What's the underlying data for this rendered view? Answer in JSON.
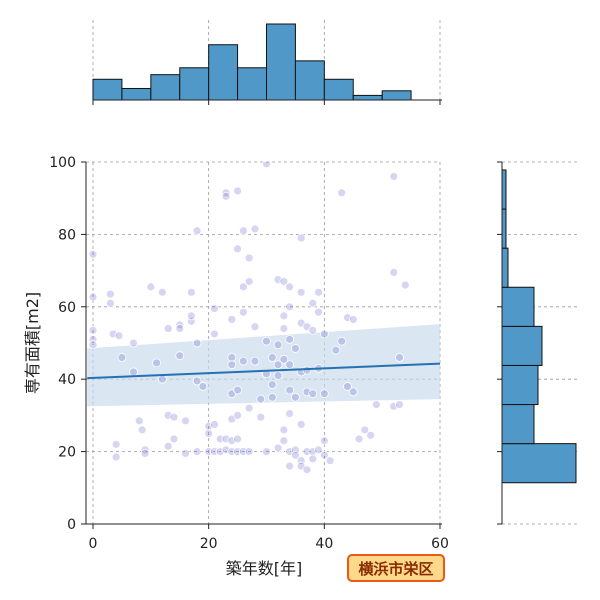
{
  "chart_data": {
    "type": "scatter",
    "subtype": "jointplot-with-regression",
    "xlabel": "築年数[年]",
    "ylabel": "専有面積[m2]",
    "xlim": [
      -1,
      60
    ],
    "ylim": [
      0,
      100
    ],
    "xticks": [
      0,
      20,
      40,
      60
    ],
    "yticks": [
      0,
      20,
      40,
      60,
      80,
      100
    ],
    "grid": true,
    "badge": "横浜市栄区",
    "colors": {
      "points": "#6a6ad0",
      "regression_line": "#2471b3",
      "confidence_band": "#c6d9ea",
      "histogram": "#4f98c7",
      "grid": "#9a9a9a",
      "badge_fill": "#ffd98a",
      "badge_border": "#e8591a",
      "badge_text": "#8a2a00"
    },
    "regression": {
      "x": [
        -1,
        60
      ],
      "y": [
        40.3,
        44.3
      ],
      "ci_lower": [
        32.5,
        34.5
      ],
      "ci_upper": [
        48.5,
        55.2
      ]
    },
    "x_histogram": {
      "bin_edges": [
        0,
        5,
        10,
        15,
        20,
        25,
        30,
        35,
        40,
        45,
        50,
        55
      ],
      "counts": [
        9,
        5,
        11,
        14,
        24,
        14,
        33,
        17,
        9,
        2,
        4
      ]
    },
    "y_histogram": {
      "bin_edges": [
        11.4,
        22.2,
        33.0,
        43.8,
        54.6,
        65.4,
        76.2,
        87.0,
        97.8
      ],
      "counts": [
        37,
        16,
        18,
        20,
        16,
        3,
        2,
        2
      ]
    },
    "points": [
      {
        "x": 0,
        "y": 74.5
      },
      {
        "x": 0,
        "y": 62.7
      },
      {
        "x": 0,
        "y": 53.5
      },
      {
        "x": 0,
        "y": 51.0
      },
      {
        "x": 0,
        "y": 49.5
      },
      {
        "x": 3,
        "y": 61.0
      },
      {
        "x": 3,
        "y": 63.5
      },
      {
        "x": 3.5,
        "y": 52.5
      },
      {
        "x": 4,
        "y": 22.0
      },
      {
        "x": 4,
        "y": 18.5
      },
      {
        "x": 4.5,
        "y": 52.0
      },
      {
        "x": 5,
        "y": 46.0
      },
      {
        "x": 7,
        "y": 50.0
      },
      {
        "x": 7,
        "y": 42.0
      },
      {
        "x": 8,
        "y": 28.5
      },
      {
        "x": 8.5,
        "y": 26.0
      },
      {
        "x": 9,
        "y": 20.5
      },
      {
        "x": 9,
        "y": 19.5
      },
      {
        "x": 10,
        "y": 65.5
      },
      {
        "x": 11,
        "y": 44.5
      },
      {
        "x": 12,
        "y": 40.0
      },
      {
        "x": 12,
        "y": 64.0
      },
      {
        "x": 13,
        "y": 54.0
      },
      {
        "x": 13,
        "y": 30.0
      },
      {
        "x": 13,
        "y": 21.5
      },
      {
        "x": 14,
        "y": 23.5
      },
      {
        "x": 14,
        "y": 29.5
      },
      {
        "x": 15,
        "y": 55.0
      },
      {
        "x": 15,
        "y": 54.0
      },
      {
        "x": 15,
        "y": 46.5
      },
      {
        "x": 16,
        "y": 28.5
      },
      {
        "x": 16,
        "y": 19.5
      },
      {
        "x": 17,
        "y": 56.0
      },
      {
        "x": 17,
        "y": 57.5
      },
      {
        "x": 17,
        "y": 64.0
      },
      {
        "x": 18,
        "y": 81.0
      },
      {
        "x": 18,
        "y": 50.0
      },
      {
        "x": 18,
        "y": 39.5
      },
      {
        "x": 18,
        "y": 20.0
      },
      {
        "x": 19,
        "y": 38.0
      },
      {
        "x": 20,
        "y": 27.0
      },
      {
        "x": 20,
        "y": 25.0
      },
      {
        "x": 20,
        "y": 20.0
      },
      {
        "x": 21,
        "y": 59.5
      },
      {
        "x": 21,
        "y": 52.5
      },
      {
        "x": 21,
        "y": 27.5
      },
      {
        "x": 21,
        "y": 20.0
      },
      {
        "x": 22,
        "y": 23.5
      },
      {
        "x": 22,
        "y": 20.0
      },
      {
        "x": 23,
        "y": 91.5
      },
      {
        "x": 23,
        "y": 90.5
      },
      {
        "x": 23,
        "y": 23.5
      },
      {
        "x": 23,
        "y": 20.5
      },
      {
        "x": 24,
        "y": 56.5
      },
      {
        "x": 24,
        "y": 46.0
      },
      {
        "x": 24,
        "y": 44.0
      },
      {
        "x": 24,
        "y": 36.0
      },
      {
        "x": 24,
        "y": 29.0
      },
      {
        "x": 24,
        "y": 23.0
      },
      {
        "x": 24,
        "y": 20.0
      },
      {
        "x": 25,
        "y": 92.0
      },
      {
        "x": 25,
        "y": 76.0
      },
      {
        "x": 25,
        "y": 37.0
      },
      {
        "x": 25,
        "y": 30.0
      },
      {
        "x": 25,
        "y": 23.5
      },
      {
        "x": 25,
        "y": 20.0
      },
      {
        "x": 26,
        "y": 81.0
      },
      {
        "x": 26,
        "y": 65.5
      },
      {
        "x": 26,
        "y": 58.5
      },
      {
        "x": 26,
        "y": 45.0
      },
      {
        "x": 26,
        "y": 20.0
      },
      {
        "x": 27,
        "y": 73.5
      },
      {
        "x": 27,
        "y": 67.0
      },
      {
        "x": 27,
        "y": 32.0
      },
      {
        "x": 27,
        "y": 20.0
      },
      {
        "x": 28,
        "y": 81.5
      },
      {
        "x": 28,
        "y": 54.5
      },
      {
        "x": 28,
        "y": 45.0
      },
      {
        "x": 29,
        "y": 34.5
      },
      {
        "x": 29,
        "y": 29.5
      },
      {
        "x": 30,
        "y": 99.5
      },
      {
        "x": 30,
        "y": 50.5
      },
      {
        "x": 30,
        "y": 41.5
      },
      {
        "x": 30,
        "y": 20.0
      },
      {
        "x": 31,
        "y": 46.0
      },
      {
        "x": 31,
        "y": 38.5
      },
      {
        "x": 31,
        "y": 35.0
      },
      {
        "x": 32,
        "y": 67.5
      },
      {
        "x": 32,
        "y": 49.5
      },
      {
        "x": 32,
        "y": 44.0
      },
      {
        "x": 32,
        "y": 41.0
      },
      {
        "x": 32,
        "y": 21.0
      },
      {
        "x": 33,
        "y": 67.0
      },
      {
        "x": 33,
        "y": 57.5
      },
      {
        "x": 33,
        "y": 54.0
      },
      {
        "x": 33,
        "y": 45.5
      },
      {
        "x": 33,
        "y": 26.0
      },
      {
        "x": 33,
        "y": 23.0
      },
      {
        "x": 34,
        "y": 65.5
      },
      {
        "x": 34,
        "y": 60.0
      },
      {
        "x": 34,
        "y": 51.0
      },
      {
        "x": 34,
        "y": 44.0
      },
      {
        "x": 34,
        "y": 37.0
      },
      {
        "x": 34,
        "y": 30.5
      },
      {
        "x": 34,
        "y": 20.0
      },
      {
        "x": 34,
        "y": 16.0
      },
      {
        "x": 35,
        "y": 48.5
      },
      {
        "x": 35,
        "y": 35.0
      },
      {
        "x": 35,
        "y": 20.5
      },
      {
        "x": 35,
        "y": 19.0
      },
      {
        "x": 36,
        "y": 79.0
      },
      {
        "x": 36,
        "y": 64.0
      },
      {
        "x": 36,
        "y": 55.5
      },
      {
        "x": 36,
        "y": 42.0
      },
      {
        "x": 36,
        "y": 27.5
      },
      {
        "x": 36,
        "y": 17.5
      },
      {
        "x": 36,
        "y": 16.0
      },
      {
        "x": 37,
        "y": 54.5
      },
      {
        "x": 37,
        "y": 42.5
      },
      {
        "x": 37,
        "y": 36.5
      },
      {
        "x": 37,
        "y": 20.0
      },
      {
        "x": 37,
        "y": 15.0
      },
      {
        "x": 38,
        "y": 61.0
      },
      {
        "x": 38,
        "y": 53.5
      },
      {
        "x": 38,
        "y": 36.0
      },
      {
        "x": 38,
        "y": 20.0
      },
      {
        "x": 38,
        "y": 18.0
      },
      {
        "x": 39,
        "y": 64.0
      },
      {
        "x": 39,
        "y": 58.5
      },
      {
        "x": 39,
        "y": 43.0
      },
      {
        "x": 39,
        "y": 20.5
      },
      {
        "x": 40,
        "y": 52.5
      },
      {
        "x": 40,
        "y": 36.0
      },
      {
        "x": 40,
        "y": 23.0
      },
      {
        "x": 40,
        "y": 19.0
      },
      {
        "x": 41,
        "y": 17.5
      },
      {
        "x": 42,
        "y": 48.0
      },
      {
        "x": 43,
        "y": 91.5
      },
      {
        "x": 43,
        "y": 50.5
      },
      {
        "x": 44,
        "y": 57.0
      },
      {
        "x": 44,
        "y": 38.0
      },
      {
        "x": 45,
        "y": 56.5
      },
      {
        "x": 45,
        "y": 36.5
      },
      {
        "x": 46,
        "y": 23.5
      },
      {
        "x": 47,
        "y": 26.0
      },
      {
        "x": 48,
        "y": 24.5
      },
      {
        "x": 49,
        "y": 33.0
      },
      {
        "x": 52,
        "y": 96.0
      },
      {
        "x": 52,
        "y": 69.5
      },
      {
        "x": 52,
        "y": 32.5
      },
      {
        "x": 53,
        "y": 46.0
      },
      {
        "x": 53,
        "y": 33.0
      },
      {
        "x": 54,
        "y": 66.0
      }
    ]
  }
}
